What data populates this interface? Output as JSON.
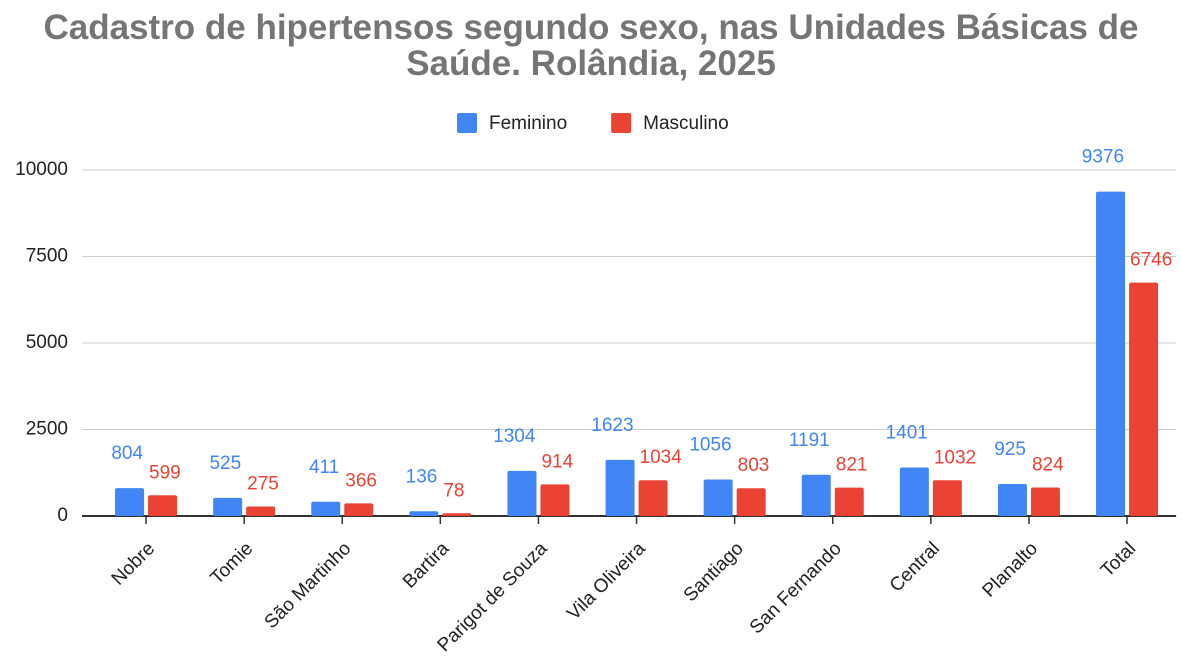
{
  "chart_data": {
    "type": "bar",
    "title": "Cadastro de hipertensos segundo sexo, nas Unidades Básicas de Saúde. Rolândia, 2025",
    "categories": [
      "Nobre",
      "Tomie",
      "São Martinho",
      "Bartira",
      "Parigot de Souza",
      "Vila Oliveira",
      "Santiago",
      "San Fernando",
      "Central",
      "Planalto",
      "Total"
    ],
    "series": [
      {
        "name": "Feminino",
        "color": "#4285f4",
        "values": [
          804,
          525,
          411,
          136,
          1304,
          1623,
          1056,
          1191,
          1401,
          925,
          9376
        ]
      },
      {
        "name": "Masculino",
        "color": "#ea4335",
        "values": [
          599,
          275,
          366,
          78,
          914,
          1034,
          803,
          821,
          1032,
          824,
          6746
        ]
      }
    ],
    "ylim": [
      0,
      10000
    ],
    "yticks": [
      0,
      2500,
      5000,
      7500,
      10000
    ],
    "grid": true,
    "legend": "top"
  }
}
